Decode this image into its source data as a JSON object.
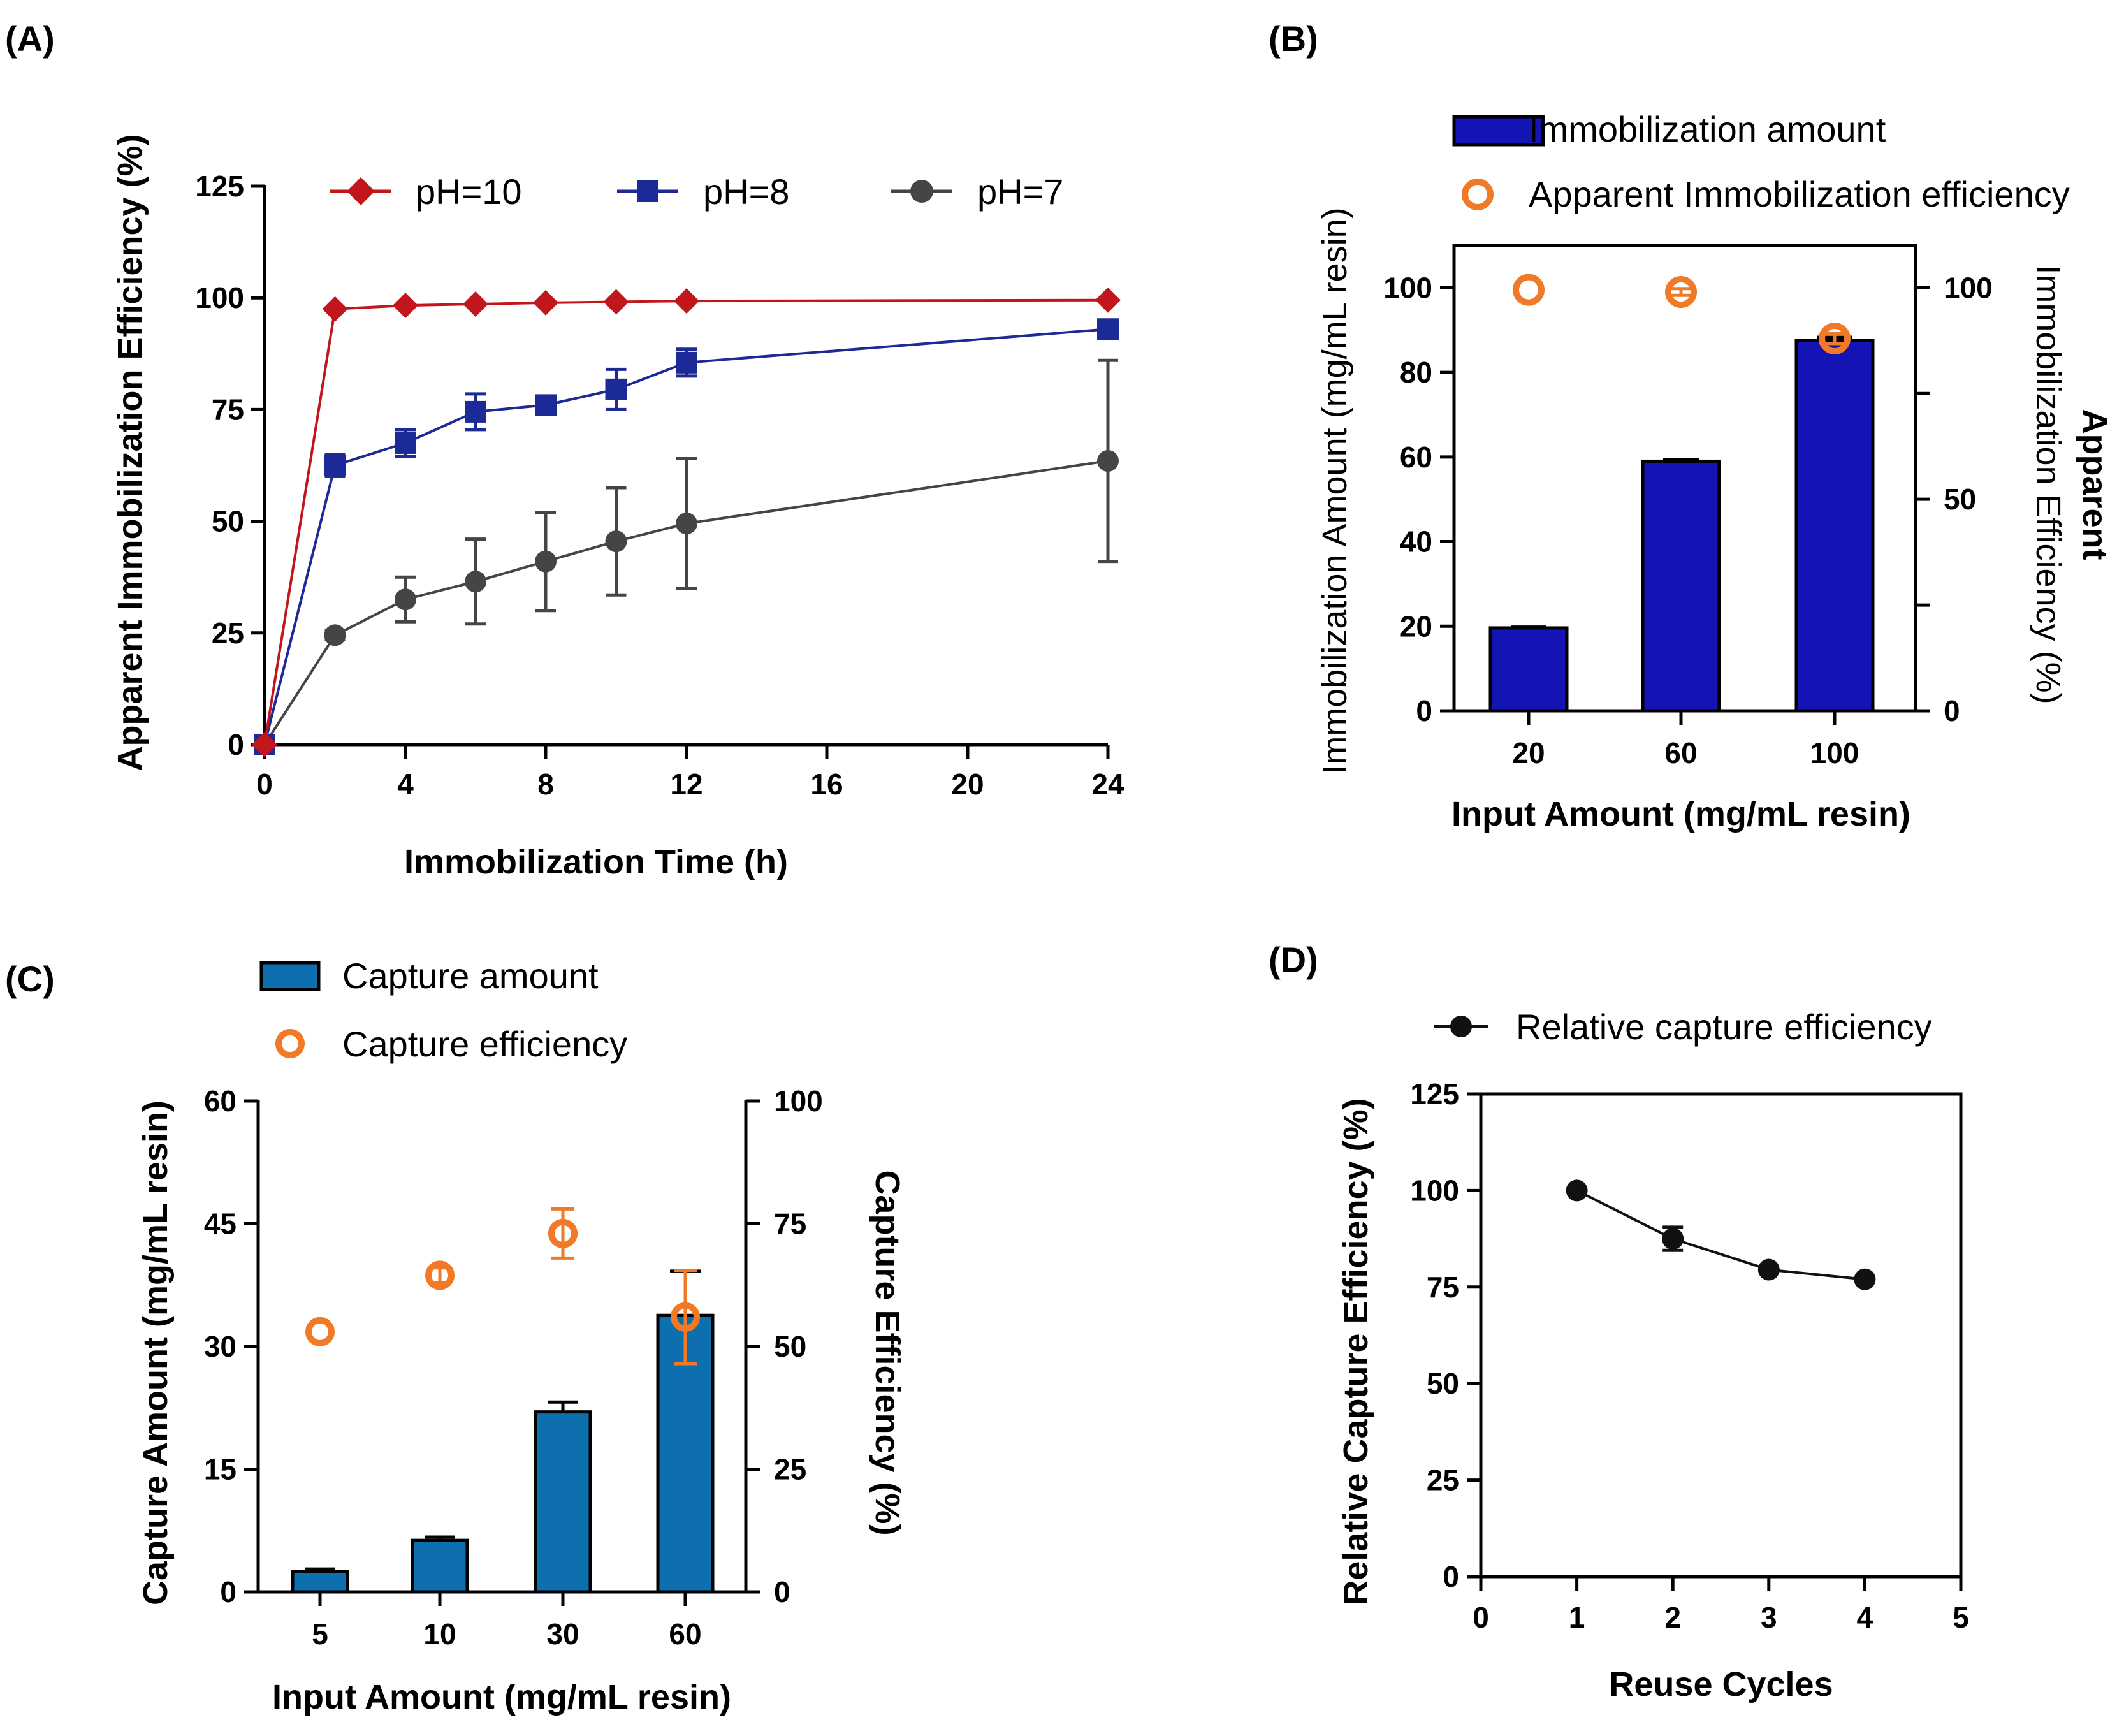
{
  "figure": {
    "panels": [
      "(A)",
      "(B)",
      "(C)",
      "(D)"
    ]
  },
  "colors": {
    "ph10": "#c0161c",
    "ph8": "#1b2a96",
    "ph7": "#454545",
    "bar_b": "#1414b4",
    "bar_c": "#0e6fae",
    "orange": "#f07a28",
    "black": "#111111"
  },
  "chart_data": [
    {
      "panel": "(A)",
      "type": "line",
      "title": "",
      "xlabel": "Immobilization Time (h)",
      "ylabel": "Apparent Immobilization Efficiency (%)",
      "x_ticks": [
        "0",
        "4",
        "8",
        "12",
        "16",
        "20",
        "24"
      ],
      "x_tick_positions": [
        0,
        4,
        8,
        12,
        16,
        20,
        24
      ],
      "y_ticks": [
        "0",
        "25",
        "50",
        "75",
        "100",
        "125"
      ],
      "ylim": [
        0,
        125
      ],
      "series": [
        {
          "name": "pH=10",
          "marker": "diamond",
          "x": [
            0,
            2,
            4,
            6,
            8,
            10,
            12,
            24
          ],
          "values": [
            0,
            97.5,
            98.3,
            98.6,
            98.9,
            99.1,
            99.3,
            99.5
          ],
          "errors": [
            0,
            0.5,
            0.4,
            0.4,
            0.3,
            0.3,
            0.3,
            0.3
          ]
        },
        {
          "name": "pH=8",
          "marker": "square",
          "x": [
            0,
            2,
            4,
            6,
            8,
            10,
            12,
            24
          ],
          "values": [
            0,
            62.5,
            67.5,
            74.5,
            76,
            79.5,
            85.5,
            93
          ],
          "errors": [
            0,
            2.5,
            3,
            4,
            1.5,
            4.5,
            3,
            1.5
          ]
        },
        {
          "name": "pH=7",
          "marker": "circle",
          "x": [
            0,
            2,
            4,
            6,
            8,
            10,
            12,
            24
          ],
          "values": [
            0,
            24.5,
            32.5,
            36.5,
            41,
            45.5,
            49.5,
            63.5
          ],
          "errors": [
            0,
            1,
            5,
            9.5,
            11,
            12,
            14.5,
            22.5
          ]
        }
      ],
      "legend": "top"
    },
    {
      "panel": "(B)",
      "type": "bar",
      "categories": [
        "20",
        "60",
        "100"
      ],
      "xlabel": "Input Amount (mg/mL resin)",
      "ylabel": "Immobilization Amount (mg/mL resin)",
      "y2label_line1": "Apparent",
      "y2label_line2": "Immobilization Efficiency (%)",
      "y_ticks": [
        "0",
        "20",
        "40",
        "60",
        "80",
        "100"
      ],
      "ylim": [
        0,
        110
      ],
      "y2_ticks": [
        "0",
        "50",
        "100"
      ],
      "y2lim": [
        0,
        110
      ],
      "series": [
        {
          "name": "Immobilization amount",
          "axis": "left",
          "kind": "bar",
          "values": [
            19.6,
            59,
            87.5
          ],
          "errors": [
            0.2,
            0.4,
            0.8
          ]
        },
        {
          "name": "Apparent Immobilization efficiency",
          "axis": "right",
          "kind": "scatter",
          "values": [
            99.5,
            99,
            88
          ],
          "errors": [
            0.3,
            0.8,
            1.2
          ]
        }
      ],
      "legend": "top"
    },
    {
      "panel": "(C)",
      "type": "bar",
      "categories": [
        "5",
        "10",
        "30",
        "60"
      ],
      "xlabel": "Input Amount (mg/mL resin)",
      "ylabel": "Capture Amount (mg/mL resin)",
      "y2label": "Capture Efficiency (%)",
      "y_ticks": [
        "0",
        "15",
        "30",
        "45",
        "60"
      ],
      "ylim": [
        0,
        60
      ],
      "y2_ticks": [
        "0",
        "25",
        "50",
        "75",
        "100"
      ],
      "y2lim": [
        0,
        100
      ],
      "series": [
        {
          "name": "Capture amount",
          "axis": "left",
          "kind": "bar",
          "values": [
            2.5,
            6.3,
            22,
            33.8
          ],
          "errors": [
            0.3,
            0.4,
            1.2,
            5.4
          ]
        },
        {
          "name": "Capture efficiency",
          "axis": "right",
          "kind": "scatter",
          "values": [
            53,
            64.5,
            73,
            56
          ],
          "errors": [
            0.5,
            1.5,
            5,
            9.5
          ]
        }
      ],
      "legend": "top"
    },
    {
      "panel": "(D)",
      "type": "line",
      "xlabel": "Reuse Cycles",
      "ylabel": "Relative Capture Efficiency  (%)",
      "x_ticks": [
        "0",
        "1",
        "2",
        "3",
        "4",
        "5"
      ],
      "xlim": [
        0,
        5
      ],
      "y_ticks": [
        "0",
        "25",
        "50",
        "75",
        "100",
        "125"
      ],
      "ylim": [
        0,
        125
      ],
      "series": [
        {
          "name": "Relative capture efficiency",
          "x": [
            1,
            2,
            3,
            4
          ],
          "values": [
            100,
            87.5,
            79.5,
            77
          ],
          "errors": [
            0,
            3,
            0.5,
            0.5
          ]
        }
      ],
      "legend": "top"
    }
  ]
}
